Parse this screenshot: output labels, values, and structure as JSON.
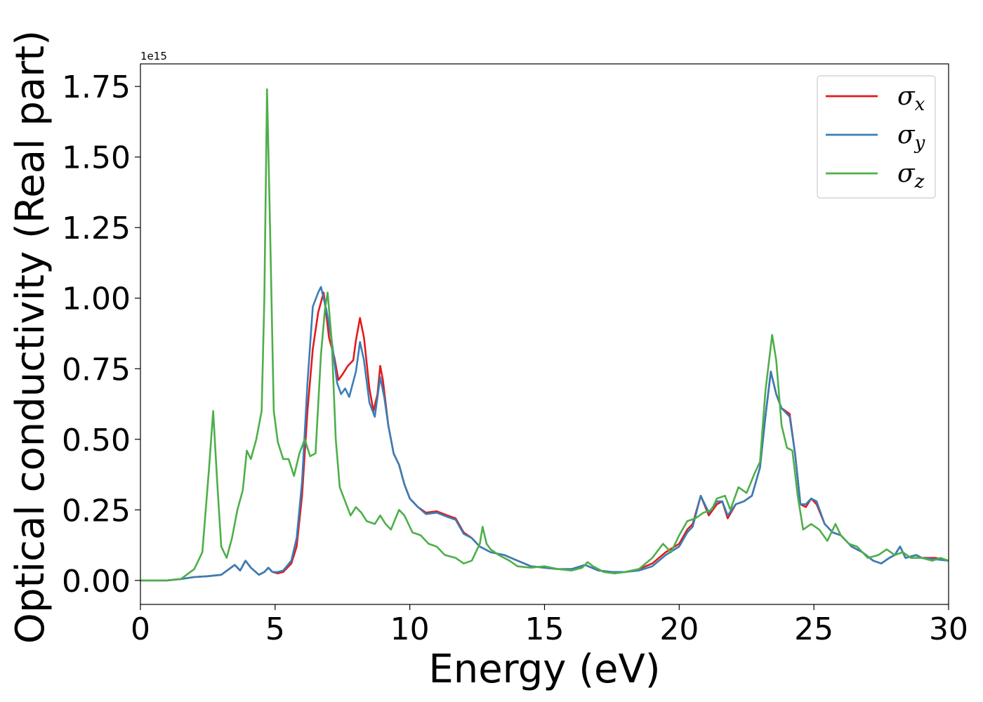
{
  "chart_data": {
    "type": "line",
    "xlabel": "Energy (eV)",
    "ylabel": "Optical conductivity (Real part)",
    "y_offset_label": "1e15",
    "xlim": [
      0,
      30
    ],
    "ylim": [
      -0.085,
      1.83
    ],
    "x_ticks": [
      0,
      5,
      10,
      15,
      20,
      25,
      30
    ],
    "x_tick_labels": [
      "0",
      "5",
      "10",
      "15",
      "20",
      "25",
      "30"
    ],
    "y_ticks": [
      0.0,
      0.25,
      0.5,
      0.75,
      1.0,
      1.25,
      1.5,
      1.75
    ],
    "y_tick_labels": [
      "0.00",
      "0.25",
      "0.50",
      "0.75",
      "1.00",
      "1.25",
      "1.50",
      "1.75"
    ],
    "grid": false,
    "legend_position": "top-right",
    "series": [
      {
        "name": "σx",
        "legend_base": "σ",
        "legend_sub": "x",
        "color": "#e41a1c",
        "points": [
          [
            0,
            0
          ],
          [
            1,
            0
          ],
          [
            1.5,
            0.005
          ],
          [
            2,
            0.012
          ],
          [
            2.5,
            0.015
          ],
          [
            3,
            0.02
          ],
          [
            3.5,
            0.055
          ],
          [
            3.7,
            0.035
          ],
          [
            3.9,
            0.07
          ],
          [
            4.1,
            0.045
          ],
          [
            4.4,
            0.02
          ],
          [
            4.6,
            0.03
          ],
          [
            4.75,
            0.045
          ],
          [
            4.9,
            0.03
          ],
          [
            5.1,
            0.025
          ],
          [
            5.3,
            0.03
          ],
          [
            5.6,
            0.06
          ],
          [
            5.8,
            0.12
          ],
          [
            6.0,
            0.3
          ],
          [
            6.2,
            0.6
          ],
          [
            6.4,
            0.82
          ],
          [
            6.6,
            0.95
          ],
          [
            6.8,
            1.02
          ],
          [
            7.0,
            0.86
          ],
          [
            7.2,
            0.79
          ],
          [
            7.35,
            0.71
          ],
          [
            7.5,
            0.73
          ],
          [
            7.7,
            0.76
          ],
          [
            7.9,
            0.78
          ],
          [
            8.0,
            0.85
          ],
          [
            8.15,
            0.93
          ],
          [
            8.3,
            0.86
          ],
          [
            8.5,
            0.68
          ],
          [
            8.65,
            0.6
          ],
          [
            8.8,
            0.66
          ],
          [
            8.9,
            0.76
          ],
          [
            9.0,
            0.71
          ],
          [
            9.2,
            0.55
          ],
          [
            9.4,
            0.45
          ],
          [
            9.6,
            0.41
          ],
          [
            9.8,
            0.34
          ],
          [
            10,
            0.29
          ],
          [
            10.3,
            0.26
          ],
          [
            10.6,
            0.24
          ],
          [
            11,
            0.245
          ],
          [
            11.4,
            0.23
          ],
          [
            11.7,
            0.22
          ],
          [
            12,
            0.17
          ],
          [
            12.3,
            0.15
          ],
          [
            12.6,
            0.12
          ],
          [
            13,
            0.1
          ],
          [
            13.5,
            0.09
          ],
          [
            14,
            0.07
          ],
          [
            14.5,
            0.05
          ],
          [
            15,
            0.045
          ],
          [
            15.5,
            0.04
          ],
          [
            16,
            0.04
          ],
          [
            16.5,
            0.055
          ],
          [
            17,
            0.035
          ],
          [
            17.5,
            0.03
          ],
          [
            18,
            0.03
          ],
          [
            18.5,
            0.04
          ],
          [
            19,
            0.06
          ],
          [
            19.5,
            0.1
          ],
          [
            20,
            0.13
          ],
          [
            20.3,
            0.18
          ],
          [
            20.5,
            0.2
          ],
          [
            20.8,
            0.3
          ],
          [
            21.1,
            0.23
          ],
          [
            21.4,
            0.27
          ],
          [
            21.6,
            0.28
          ],
          [
            21.8,
            0.22
          ],
          [
            22.1,
            0.27
          ],
          [
            22.4,
            0.28
          ],
          [
            22.7,
            0.3
          ],
          [
            23,
            0.4
          ],
          [
            23.2,
            0.58
          ],
          [
            23.4,
            0.74
          ],
          [
            23.6,
            0.66
          ],
          [
            23.8,
            0.61
          ],
          [
            24.1,
            0.59
          ],
          [
            24.3,
            0.45
          ],
          [
            24.5,
            0.27
          ],
          [
            24.7,
            0.26
          ],
          [
            24.9,
            0.29
          ],
          [
            25.1,
            0.27
          ],
          [
            25.4,
            0.2
          ],
          [
            25.7,
            0.17
          ],
          [
            26,
            0.16
          ],
          [
            26.4,
            0.12
          ],
          [
            26.8,
            0.1
          ],
          [
            27.2,
            0.07
          ],
          [
            27.5,
            0.06
          ],
          [
            27.8,
            0.08
          ],
          [
            28,
            0.09
          ],
          [
            28.2,
            0.12
          ],
          [
            28.4,
            0.08
          ],
          [
            28.8,
            0.09
          ],
          [
            29,
            0.08
          ],
          [
            29.5,
            0.08
          ],
          [
            30,
            0.07
          ]
        ]
      },
      {
        "name": "σy",
        "legend_base": "σ",
        "legend_sub": "y",
        "color": "#377eb8",
        "points": [
          [
            0,
            0
          ],
          [
            1,
            0
          ],
          [
            1.5,
            0.005
          ],
          [
            2,
            0.012
          ],
          [
            2.5,
            0.015
          ],
          [
            3,
            0.02
          ],
          [
            3.5,
            0.055
          ],
          [
            3.7,
            0.035
          ],
          [
            3.9,
            0.07
          ],
          [
            4.1,
            0.045
          ],
          [
            4.4,
            0.02
          ],
          [
            4.6,
            0.03
          ],
          [
            4.75,
            0.045
          ],
          [
            4.9,
            0.03
          ],
          [
            5.1,
            0.03
          ],
          [
            5.3,
            0.035
          ],
          [
            5.6,
            0.07
          ],
          [
            5.8,
            0.15
          ],
          [
            6.0,
            0.35
          ],
          [
            6.2,
            0.7
          ],
          [
            6.4,
            0.97
          ],
          [
            6.6,
            1.02
          ],
          [
            6.7,
            1.04
          ],
          [
            6.9,
            0.96
          ],
          [
            7.1,
            0.85
          ],
          [
            7.3,
            0.7
          ],
          [
            7.45,
            0.66
          ],
          [
            7.6,
            0.68
          ],
          [
            7.75,
            0.65
          ],
          [
            8.0,
            0.74
          ],
          [
            8.15,
            0.845
          ],
          [
            8.3,
            0.78
          ],
          [
            8.5,
            0.63
          ],
          [
            8.7,
            0.58
          ],
          [
            8.9,
            0.72
          ],
          [
            9.05,
            0.65
          ],
          [
            9.2,
            0.55
          ],
          [
            9.4,
            0.45
          ],
          [
            9.6,
            0.41
          ],
          [
            9.8,
            0.34
          ],
          [
            10,
            0.29
          ],
          [
            10.3,
            0.26
          ],
          [
            10.6,
            0.235
          ],
          [
            11,
            0.24
          ],
          [
            11.4,
            0.225
          ],
          [
            11.7,
            0.215
          ],
          [
            12,
            0.165
          ],
          [
            12.3,
            0.15
          ],
          [
            12.6,
            0.12
          ],
          [
            13,
            0.1
          ],
          [
            13.5,
            0.09
          ],
          [
            14,
            0.07
          ],
          [
            14.5,
            0.05
          ],
          [
            15,
            0.045
          ],
          [
            15.5,
            0.04
          ],
          [
            16,
            0.04
          ],
          [
            16.5,
            0.055
          ],
          [
            17,
            0.035
          ],
          [
            17.5,
            0.03
          ],
          [
            18,
            0.03
          ],
          [
            18.5,
            0.035
          ],
          [
            19,
            0.05
          ],
          [
            19.5,
            0.09
          ],
          [
            20,
            0.12
          ],
          [
            20.3,
            0.17
          ],
          [
            20.5,
            0.19
          ],
          [
            20.8,
            0.3
          ],
          [
            21.1,
            0.24
          ],
          [
            21.4,
            0.28
          ],
          [
            21.6,
            0.28
          ],
          [
            21.8,
            0.23
          ],
          [
            22.1,
            0.27
          ],
          [
            22.4,
            0.28
          ],
          [
            22.7,
            0.3
          ],
          [
            23,
            0.4
          ],
          [
            23.2,
            0.58
          ],
          [
            23.4,
            0.74
          ],
          [
            23.6,
            0.66
          ],
          [
            23.8,
            0.61
          ],
          [
            24.1,
            0.58
          ],
          [
            24.3,
            0.45
          ],
          [
            24.5,
            0.27
          ],
          [
            24.7,
            0.27
          ],
          [
            24.9,
            0.29
          ],
          [
            25.1,
            0.28
          ],
          [
            25.4,
            0.2
          ],
          [
            25.7,
            0.17
          ],
          [
            26,
            0.16
          ],
          [
            26.4,
            0.12
          ],
          [
            26.8,
            0.1
          ],
          [
            27.2,
            0.07
          ],
          [
            27.5,
            0.06
          ],
          [
            27.8,
            0.08
          ],
          [
            28,
            0.09
          ],
          [
            28.2,
            0.12
          ],
          [
            28.4,
            0.08
          ],
          [
            28.8,
            0.09
          ],
          [
            29,
            0.08
          ],
          [
            29.5,
            0.075
          ],
          [
            30,
            0.07
          ]
        ]
      },
      {
        "name": "σz",
        "legend_base": "σ",
        "legend_sub": "z",
        "color": "#4daf4a",
        "points": [
          [
            0,
            0
          ],
          [
            1,
            0
          ],
          [
            1.5,
            0.005
          ],
          [
            2,
            0.04
          ],
          [
            2.3,
            0.1
          ],
          [
            2.55,
            0.4
          ],
          [
            2.7,
            0.6
          ],
          [
            2.85,
            0.35
          ],
          [
            3.0,
            0.12
          ],
          [
            3.2,
            0.08
          ],
          [
            3.4,
            0.15
          ],
          [
            3.6,
            0.25
          ],
          [
            3.8,
            0.32
          ],
          [
            3.95,
            0.46
          ],
          [
            4.1,
            0.43
          ],
          [
            4.3,
            0.5
          ],
          [
            4.5,
            0.6
          ],
          [
            4.6,
            1.0
          ],
          [
            4.7,
            1.74
          ],
          [
            4.8,
            1.3
          ],
          [
            4.95,
            0.6
          ],
          [
            5.1,
            0.49
          ],
          [
            5.3,
            0.43
          ],
          [
            5.5,
            0.43
          ],
          [
            5.7,
            0.37
          ],
          [
            5.9,
            0.45
          ],
          [
            6.1,
            0.5
          ],
          [
            6.3,
            0.44
          ],
          [
            6.5,
            0.45
          ],
          [
            6.7,
            0.8
          ],
          [
            6.85,
            0.96
          ],
          [
            6.95,
            1.02
          ],
          [
            7.1,
            0.85
          ],
          [
            7.25,
            0.5
          ],
          [
            7.4,
            0.33
          ],
          [
            7.6,
            0.28
          ],
          [
            7.8,
            0.23
          ],
          [
            8.0,
            0.26
          ],
          [
            8.2,
            0.24
          ],
          [
            8.4,
            0.21
          ],
          [
            8.7,
            0.2
          ],
          [
            8.9,
            0.23
          ],
          [
            9.1,
            0.2
          ],
          [
            9.3,
            0.18
          ],
          [
            9.6,
            0.25
          ],
          [
            9.8,
            0.23
          ],
          [
            10.1,
            0.17
          ],
          [
            10.4,
            0.16
          ],
          [
            10.7,
            0.13
          ],
          [
            11,
            0.12
          ],
          [
            11.3,
            0.09
          ],
          [
            11.7,
            0.08
          ],
          [
            12,
            0.06
          ],
          [
            12.3,
            0.07
          ],
          [
            12.6,
            0.13
          ],
          [
            12.7,
            0.19
          ],
          [
            12.85,
            0.13
          ],
          [
            13,
            0.11
          ],
          [
            13.3,
            0.09
          ],
          [
            13.7,
            0.07
          ],
          [
            14,
            0.05
          ],
          [
            14.5,
            0.045
          ],
          [
            15,
            0.05
          ],
          [
            15.5,
            0.04
          ],
          [
            16,
            0.035
          ],
          [
            16.4,
            0.045
          ],
          [
            16.6,
            0.065
          ],
          [
            16.8,
            0.05
          ],
          [
            17.2,
            0.03
          ],
          [
            17.6,
            0.025
          ],
          [
            18,
            0.03
          ],
          [
            18.5,
            0.04
          ],
          [
            19,
            0.08
          ],
          [
            19.4,
            0.13
          ],
          [
            19.7,
            0.1
          ],
          [
            20,
            0.16
          ],
          [
            20.3,
            0.21
          ],
          [
            20.6,
            0.22
          ],
          [
            20.9,
            0.24
          ],
          [
            21.2,
            0.25
          ],
          [
            21.4,
            0.29
          ],
          [
            21.7,
            0.3
          ],
          [
            21.9,
            0.25
          ],
          [
            22.2,
            0.33
          ],
          [
            22.5,
            0.31
          ],
          [
            22.8,
            0.38
          ],
          [
            23.0,
            0.42
          ],
          [
            23.2,
            0.67
          ],
          [
            23.45,
            0.87
          ],
          [
            23.6,
            0.78
          ],
          [
            23.8,
            0.55
          ],
          [
            24.0,
            0.47
          ],
          [
            24.2,
            0.46
          ],
          [
            24.4,
            0.3
          ],
          [
            24.6,
            0.18
          ],
          [
            24.9,
            0.2
          ],
          [
            25.2,
            0.18
          ],
          [
            25.5,
            0.14
          ],
          [
            25.8,
            0.2
          ],
          [
            26,
            0.16
          ],
          [
            26.3,
            0.13
          ],
          [
            26.6,
            0.12
          ],
          [
            27,
            0.08
          ],
          [
            27.4,
            0.09
          ],
          [
            27.7,
            0.11
          ],
          [
            28,
            0.09
          ],
          [
            28.3,
            0.1
          ],
          [
            28.6,
            0.08
          ],
          [
            29,
            0.08
          ],
          [
            29.4,
            0.07
          ],
          [
            29.7,
            0.08
          ],
          [
            30,
            0.07
          ]
        ]
      }
    ]
  }
}
